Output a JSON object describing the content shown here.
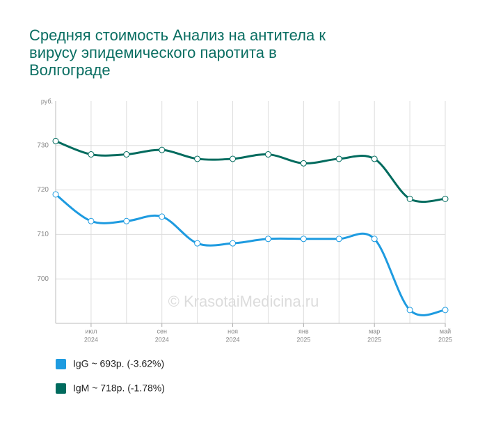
{
  "chart_data": {
    "type": "line",
    "title_lines": [
      "Средняя стоимость Анализ на антитела к",
      "вирусу эпидемического паротита в",
      "Волгограде"
    ],
    "y_label": "руб.",
    "watermark": "© KrasotaiMedicina.ru",
    "categories": [
      null,
      "июл",
      null,
      "сен",
      null,
      "ноя",
      null,
      "янв",
      null,
      "мар",
      null,
      "май"
    ],
    "category_years": [
      null,
      "2024",
      null,
      "2024",
      null,
      "2024",
      null,
      "2025",
      null,
      "2025",
      null,
      "2025"
    ],
    "series": [
      {
        "name": "IgG ~ 693р. (-3.62%)",
        "color": "#1e9be0",
        "values": [
          719,
          713,
          713,
          714,
          708,
          708,
          709,
          709,
          709,
          709,
          693,
          693
        ]
      },
      {
        "name": "IgM ~ 718р. (-1.78%)",
        "color": "#006b5e",
        "values": [
          731,
          728,
          728,
          729,
          727,
          727,
          728,
          726,
          727,
          727,
          718,
          718
        ]
      }
    ],
    "ylim": [
      690,
      740
    ],
    "yticks": [
      700,
      710,
      720,
      730
    ],
    "grid": true
  }
}
